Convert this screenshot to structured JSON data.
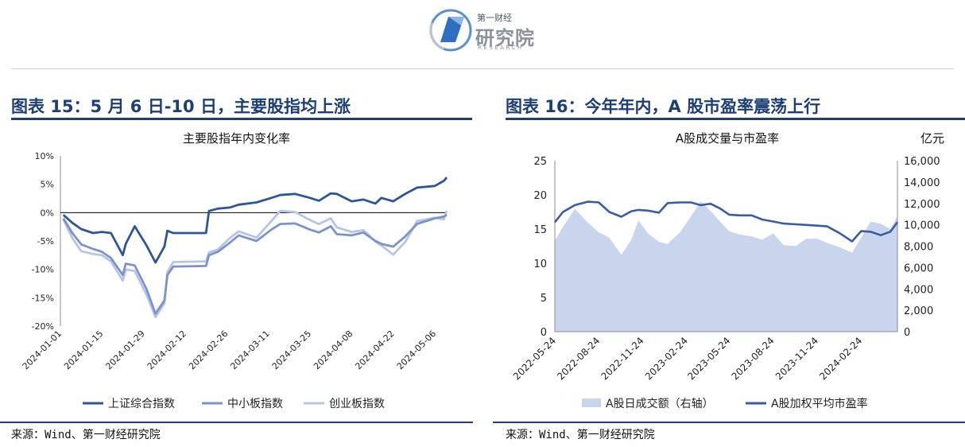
{
  "logo": {
    "top_text": "第一财经",
    "main_text": "研究院",
    "sub_text": "RESEARCH"
  },
  "left_panel": {
    "figure_title": "图表 15：5 月 6 日-10 日，主要股指均上涨",
    "source": "来源：Wind、第一财经研究院"
  },
  "right_panel": {
    "figure_title": "图表 16：今年年内，A 股市盈率震荡上行",
    "source": "来源：Wind、第一财经研究院"
  },
  "chart_data": [
    {
      "type": "line",
      "title": "主要股指年内变化率",
      "x_tick_labels": [
        "2024-01-01",
        "2024-01-15",
        "2024-01-29",
        "2024-02-12",
        "2024-02-26",
        "2024-03-11",
        "2024-03-25",
        "2024-04-08",
        "2024-04-22",
        "2024-05-06"
      ],
      "xlim": [
        "2024-01-01",
        "2024-05-10"
      ],
      "y_tick_labels": [
        "10%",
        "5%",
        "0%",
        "-5%",
        "-10%",
        "-15%",
        "-20%"
      ],
      "ylim": [
        -20,
        10
      ],
      "legend": "bottom",
      "series": [
        {
          "name": "上证综合指数",
          "color": "#2e5597",
          "x": [
            "2024-01-02",
            "2024-01-05",
            "2024-01-08",
            "2024-01-12",
            "2024-01-15",
            "2024-01-18",
            "2024-01-22",
            "2024-01-23",
            "2024-01-26",
            "2024-01-30",
            "2024-02-02",
            "2024-02-05",
            "2024-02-06",
            "2024-02-08",
            "2024-02-19",
            "2024-02-20",
            "2024-02-23",
            "2024-02-27",
            "2024-03-01",
            "2024-03-07",
            "2024-03-12",
            "2024-03-15",
            "2024-03-20",
            "2024-03-25",
            "2024-03-28",
            "2024-04-01",
            "2024-04-03",
            "2024-04-08",
            "2024-04-12",
            "2024-04-16",
            "2024-04-18",
            "2024-04-22",
            "2024-04-26",
            "2024-04-30",
            "2024-05-06",
            "2024-05-09",
            "2024-05-10"
          ],
          "values": [
            -0.4,
            -1.8,
            -2.9,
            -3.6,
            -3.4,
            -3.6,
            -7.5,
            -5.5,
            -2.4,
            -5.8,
            -8.8,
            -6.0,
            -3.2,
            -3.6,
            -3.6,
            0.3,
            0.7,
            0.9,
            1.4,
            1.8,
            2.6,
            3.1,
            3.3,
            2.6,
            2.1,
            3.4,
            3.3,
            2.0,
            2.3,
            1.6,
            2.6,
            2.0,
            3.3,
            4.4,
            4.7,
            5.6,
            6.2
          ]
        },
        {
          "name": "中小板指数",
          "color": "#7b93c9",
          "x": [
            "2024-01-02",
            "2024-01-05",
            "2024-01-08",
            "2024-01-12",
            "2024-01-15",
            "2024-01-18",
            "2024-01-22",
            "2024-01-23",
            "2024-01-26",
            "2024-01-30",
            "2024-02-02",
            "2024-02-05",
            "2024-02-06",
            "2024-02-08",
            "2024-02-19",
            "2024-02-20",
            "2024-02-23",
            "2024-02-27",
            "2024-03-01",
            "2024-03-07",
            "2024-03-12",
            "2024-03-15",
            "2024-03-20",
            "2024-03-25",
            "2024-03-28",
            "2024-04-01",
            "2024-04-03",
            "2024-04-08",
            "2024-04-12",
            "2024-04-16",
            "2024-04-18",
            "2024-04-22",
            "2024-04-26",
            "2024-04-30",
            "2024-05-06",
            "2024-05-09",
            "2024-05-10"
          ],
          "values": [
            -1.0,
            -3.6,
            -5.6,
            -6.4,
            -6.9,
            -8.0,
            -11.0,
            -9.0,
            -9.3,
            -13.5,
            -17.8,
            -15.5,
            -11.0,
            -9.5,
            -9.4,
            -7.5,
            -6.9,
            -5.3,
            -4.0,
            -5.0,
            -3.0,
            -2.0,
            -1.9,
            -3.0,
            -3.5,
            -2.4,
            -3.8,
            -4.0,
            -3.5,
            -5.0,
            -5.5,
            -6.0,
            -4.2,
            -2.0,
            -1.0,
            -0.7,
            -0.4
          ]
        },
        {
          "name": "创业板指数",
          "color": "#b7c4e6",
          "x": [
            "2024-01-02",
            "2024-01-05",
            "2024-01-08",
            "2024-01-12",
            "2024-01-15",
            "2024-01-18",
            "2024-01-22",
            "2024-01-23",
            "2024-01-26",
            "2024-01-30",
            "2024-02-02",
            "2024-02-05",
            "2024-02-06",
            "2024-02-08",
            "2024-02-19",
            "2024-02-20",
            "2024-02-23",
            "2024-02-27",
            "2024-03-01",
            "2024-03-07",
            "2024-03-12",
            "2024-03-15",
            "2024-03-20",
            "2024-03-25",
            "2024-03-28",
            "2024-04-01",
            "2024-04-03",
            "2024-04-08",
            "2024-04-12",
            "2024-04-16",
            "2024-04-18",
            "2024-04-22",
            "2024-04-26",
            "2024-04-30",
            "2024-05-06",
            "2024-05-09",
            "2024-05-10"
          ],
          "values": [
            -1.2,
            -4.5,
            -6.8,
            -7.3,
            -7.5,
            -8.6,
            -12.0,
            -10.0,
            -10.3,
            -14.5,
            -18.4,
            -16.0,
            -10.5,
            -8.7,
            -8.6,
            -7.0,
            -6.5,
            -4.5,
            -3.3,
            -4.4,
            -1.5,
            0.3,
            0.1,
            -1.3,
            -2.0,
            -1.0,
            -2.6,
            -3.4,
            -3.1,
            -5.1,
            -5.8,
            -7.4,
            -5.2,
            -1.5,
            -0.9,
            -1.2,
            0.3
          ]
        }
      ]
    },
    {
      "type": "area",
      "title": "A股成交量与市盈率",
      "right_axis_unit": "亿元",
      "x_tick_labels": [
        "2022-05-24",
        "2022-08-24",
        "2022-11-24",
        "2023-02-24",
        "2023-05-24",
        "2023-08-24",
        "2023-11-24",
        "2024-02-24"
      ],
      "xlim": [
        "2022-05-24",
        "2024-05-10"
      ],
      "left_y_tick_labels": [
        "0",
        "5",
        "10",
        "15",
        "20",
        "25"
      ],
      "left_ylim": [
        0,
        25
      ],
      "right_y_tick_labels": [
        "0",
        "2,000",
        "4,000",
        "6,000",
        "8,000",
        "10,000",
        "12,000",
        "14,000",
        "16,000"
      ],
      "right_ylim": [
        0,
        16000
      ],
      "legend": "bottom",
      "series": [
        {
          "name": "A股日成交额（右轴）",
          "axis": "right",
          "type": "area",
          "color": "#c9d5ec",
          "x": [
            "2022-05-24",
            "2022-06-10",
            "2022-07-05",
            "2022-08-01",
            "2022-08-24",
            "2022-09-15",
            "2022-10-10",
            "2022-10-31",
            "2022-11-15",
            "2022-12-05",
            "2022-12-28",
            "2023-01-15",
            "2023-02-10",
            "2023-03-05",
            "2023-03-25",
            "2023-04-15",
            "2023-05-05",
            "2023-05-24",
            "2023-06-15",
            "2023-07-10",
            "2023-08-01",
            "2023-08-24",
            "2023-09-15",
            "2023-10-10",
            "2023-11-01",
            "2023-11-24",
            "2023-12-15",
            "2024-01-10",
            "2024-02-05",
            "2024-02-24",
            "2024-03-15",
            "2024-04-05",
            "2024-04-25",
            "2024-05-10"
          ],
          "values": [
            8500,
            9800,
            11500,
            10200,
            9300,
            8800,
            7200,
            8600,
            10400,
            9200,
            8400,
            8200,
            9300,
            10800,
            12200,
            11300,
            10300,
            9400,
            9100,
            8900,
            8600,
            9200,
            8100,
            8000,
            8700,
            8700,
            8300,
            7900,
            7400,
            8800,
            10300,
            10100,
            9600,
            10800
          ]
        },
        {
          "name": "A股加权平均市盈率",
          "axis": "left",
          "type": "line",
          "color": "#3a5ba8",
          "x": [
            "2022-05-24",
            "2022-06-10",
            "2022-07-05",
            "2022-08-01",
            "2022-08-24",
            "2022-09-15",
            "2022-10-10",
            "2022-10-31",
            "2022-11-15",
            "2022-12-05",
            "2022-12-28",
            "2023-01-15",
            "2023-02-10",
            "2023-03-05",
            "2023-03-25",
            "2023-04-15",
            "2023-05-05",
            "2023-05-24",
            "2023-06-15",
            "2023-07-10",
            "2023-08-01",
            "2023-08-24",
            "2023-09-15",
            "2023-10-10",
            "2023-11-01",
            "2023-11-24",
            "2023-12-15",
            "2024-01-10",
            "2024-02-05",
            "2024-02-24",
            "2024-03-15",
            "2024-04-05",
            "2024-04-25",
            "2024-05-10"
          ],
          "values": [
            16.0,
            17.5,
            18.5,
            19.0,
            18.9,
            17.5,
            16.8,
            17.6,
            17.8,
            17.7,
            17.4,
            18.8,
            18.9,
            18.9,
            18.5,
            18.7,
            18.0,
            17.1,
            17.0,
            17.0,
            16.4,
            16.1,
            15.8,
            15.7,
            15.6,
            15.5,
            15.4,
            14.4,
            13.2,
            14.7,
            14.6,
            14.1,
            14.6,
            16.0
          ]
        }
      ]
    }
  ]
}
